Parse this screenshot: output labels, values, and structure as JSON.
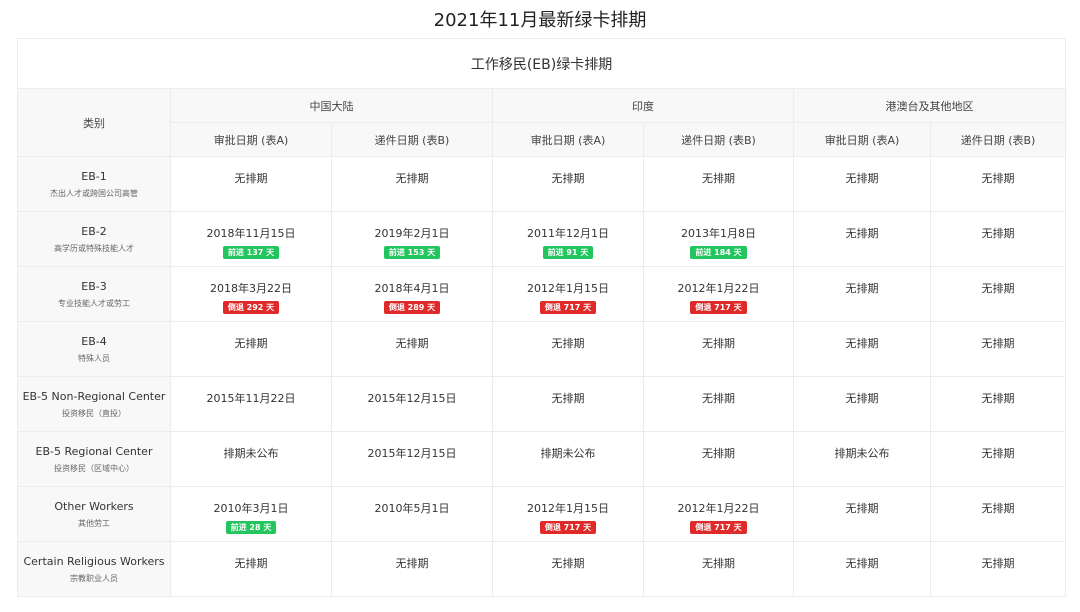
{
  "title": "2021年11月最新绿卡排期",
  "subtitle": "工作移民(EB)绿卡排期",
  "headers": {
    "category": "类别",
    "regions": [
      "中国大陆",
      "印度",
      "港澳台及其他地区"
    ],
    "cols": [
      "审批日期 (表A)",
      "递件日期 (表B)",
      "审批日期 (表A)",
      "递件日期 (表B)",
      "审批日期 (表A)",
      "递件日期 (表B)"
    ]
  },
  "colors": {
    "forward": "#22c55e",
    "backward": "#e02a2a"
  },
  "rows": [
    {
      "en": "EB-1",
      "zh": "杰出人才或跨国公司高管",
      "cells": [
        {
          "date": "无排期"
        },
        {
          "date": "无排期"
        },
        {
          "date": "无排期"
        },
        {
          "date": "无排期"
        },
        {
          "date": "无排期"
        },
        {
          "date": "无排期"
        }
      ]
    },
    {
      "en": "EB-2",
      "zh": "高学历或特殊技能人才",
      "cells": [
        {
          "date": "2018年11月15日",
          "badge": "前进 137 天",
          "type": "fwd"
        },
        {
          "date": "2019年2月1日",
          "badge": "前进 153 天",
          "type": "fwd"
        },
        {
          "date": "2011年12月1日",
          "badge": "前进 91 天",
          "type": "fwd"
        },
        {
          "date": "2013年1月8日",
          "badge": "前进 184 天",
          "type": "fwd"
        },
        {
          "date": "无排期"
        },
        {
          "date": "无排期"
        }
      ]
    },
    {
      "en": "EB-3",
      "zh": "专业技能人才或劳工",
      "cells": [
        {
          "date": "2018年3月22日",
          "badge": "倒退 292 天",
          "type": "back"
        },
        {
          "date": "2018年4月1日",
          "badge": "倒退 289 天",
          "type": "back"
        },
        {
          "date": "2012年1月15日",
          "badge": "倒退 717 天",
          "type": "back"
        },
        {
          "date": "2012年1月22日",
          "badge": "倒退 717 天",
          "type": "back"
        },
        {
          "date": "无排期"
        },
        {
          "date": "无排期"
        }
      ]
    },
    {
      "en": "EB-4",
      "zh": "特殊人员",
      "cells": [
        {
          "date": "无排期"
        },
        {
          "date": "无排期"
        },
        {
          "date": "无排期"
        },
        {
          "date": "无排期"
        },
        {
          "date": "无排期"
        },
        {
          "date": "无排期"
        }
      ]
    },
    {
      "en": "EB-5 Non-Regional Center",
      "zh": "投资移民（直投）",
      "cells": [
        {
          "date": "2015年11月22日"
        },
        {
          "date": "2015年12月15日"
        },
        {
          "date": "无排期"
        },
        {
          "date": "无排期"
        },
        {
          "date": "无排期"
        },
        {
          "date": "无排期"
        }
      ]
    },
    {
      "en": "EB-5 Regional Center",
      "zh": "投资移民（区域中心）",
      "cells": [
        {
          "date": "排期未公布"
        },
        {
          "date": "2015年12月15日"
        },
        {
          "date": "排期未公布"
        },
        {
          "date": "无排期"
        },
        {
          "date": "排期未公布"
        },
        {
          "date": "无排期"
        }
      ]
    },
    {
      "en": "Other Workers",
      "zh": "其他劳工",
      "cells": [
        {
          "date": "2010年3月1日",
          "badge": "前进 28 天",
          "type": "fwd"
        },
        {
          "date": "2010年5月1日"
        },
        {
          "date": "2012年1月15日",
          "badge": "倒退 717 天",
          "type": "back"
        },
        {
          "date": "2012年1月22日",
          "badge": "倒退 717 天",
          "type": "back"
        },
        {
          "date": "无排期"
        },
        {
          "date": "无排期"
        }
      ]
    },
    {
      "en": "Certain Religious Workers",
      "zh": "宗教职业人员",
      "cells": [
        {
          "date": "无排期"
        },
        {
          "date": "无排期"
        },
        {
          "date": "无排期"
        },
        {
          "date": "无排期"
        },
        {
          "date": "无排期"
        },
        {
          "date": "无排期"
        }
      ]
    }
  ]
}
